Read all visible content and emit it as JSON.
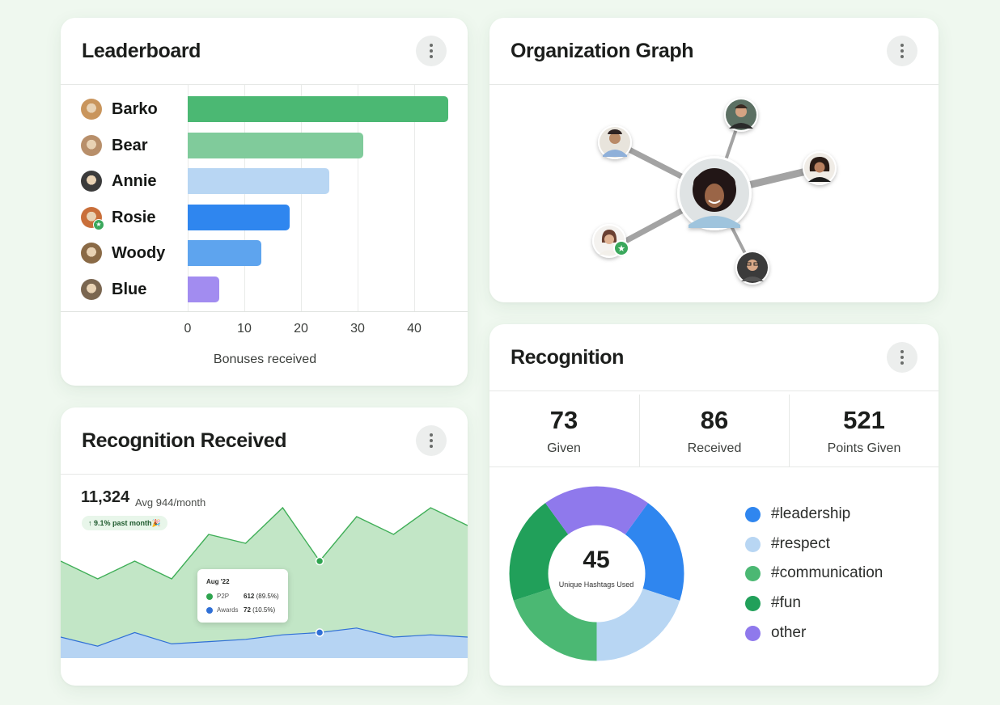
{
  "colors": {
    "background": "#eff8ef",
    "green_dark": "#21a05a",
    "green_mid": "#4bb873",
    "green_light": "#80cb9b",
    "blue": "#2f86ef",
    "blue_mid": "#5ea4ee",
    "blue_light": "#b8d6f3",
    "purple": "#a28cf0",
    "area_green": "#c2e6c6",
    "area_blue": "#b6d4f3"
  },
  "leaderboard": {
    "title": "Leaderboard",
    "menu_icon": "kebab-menu-icon",
    "chart_data": {
      "type": "bar",
      "orientation": "horizontal",
      "categories": [
        "Barko",
        "Bear",
        "Annie",
        "Rosie",
        "Woody",
        "Blue"
      ],
      "values": [
        46,
        31,
        25,
        18,
        13,
        5.5
      ],
      "bar_colors": [
        "#4bb873",
        "#80cb9b",
        "#b8d6f3",
        "#2f86ef",
        "#5ea4ee",
        "#a28cf0"
      ],
      "xlabel": "Bonuses received",
      "ylabel": "",
      "xticks": [
        "0",
        "10",
        "20",
        "30",
        "40"
      ],
      "xlim": [
        0,
        46
      ],
      "grid": true
    },
    "rows": [
      {
        "name": "Barko",
        "avatar": "dog-avatar-icon"
      },
      {
        "name": "Bear",
        "avatar": "dog-avatar-icon"
      },
      {
        "name": "Annie",
        "avatar": "dog-avatar-icon"
      },
      {
        "name": "Rosie",
        "avatar": "dog-avatar-icon",
        "badge": "star-badge-icon"
      },
      {
        "name": "Woody",
        "avatar": "dog-avatar-icon"
      },
      {
        "name": "Blue",
        "avatar": "dog-avatar-icon"
      }
    ]
  },
  "recognition_received": {
    "title": "Recognition Received",
    "total": "11,324",
    "avg": "Avg 944/month",
    "change": "↑ 9.1% past month🎉",
    "tooltip": {
      "title": "Aug '22",
      "rows": [
        {
          "label": "P2P",
          "value": "612",
          "pct": "(89.5%)",
          "color": "#2ea44f"
        },
        {
          "label": "Awards",
          "value": "72",
          "pct": "(10.5%)",
          "color": "#2f6fd6"
        }
      ]
    },
    "chart_data": {
      "type": "area",
      "x": [
        0,
        1,
        2,
        3,
        4,
        5,
        6,
        7,
        8,
        9,
        10,
        11
      ],
      "series": [
        {
          "name": "P2P",
          "values": [
            612,
            610,
            612,
            610,
            615,
            614,
            618,
            612,
            617,
            615,
            618,
            616
          ]
        },
        {
          "name": "Awards",
          "values": [
            70,
            66,
            72,
            67,
            68,
            69,
            71,
            72,
            74,
            70,
            71,
            70
          ]
        }
      ]
    }
  },
  "org_graph": {
    "title": "Organization Graph",
    "center": "person-avatar-icon",
    "nodes": [
      "person-avatar-icon",
      "person-avatar-icon",
      "person-avatar-icon",
      "person-avatar-icon",
      "person-avatar-icon"
    ]
  },
  "recognition": {
    "title": "Recognition",
    "stats": [
      {
        "value": "73",
        "label": "Given"
      },
      {
        "value": "86",
        "label": "Received"
      },
      {
        "value": "521",
        "label": "Points Given"
      }
    ],
    "chart_data": {
      "type": "pie",
      "donut": true,
      "center_value": "45",
      "center_caption": "Unique Hashtags Used",
      "slices": [
        {
          "label": "#leadership",
          "value": 20,
          "color": "#2f86ef"
        },
        {
          "label": "#respect",
          "value": 20,
          "color": "#b8d6f3"
        },
        {
          "label": "#communication",
          "value": 20,
          "color": "#4bb873"
        },
        {
          "label": "#fun",
          "value": 20,
          "color": "#21a05a"
        },
        {
          "label": "other",
          "value": 20,
          "color": "#8f79ec"
        }
      ]
    }
  }
}
